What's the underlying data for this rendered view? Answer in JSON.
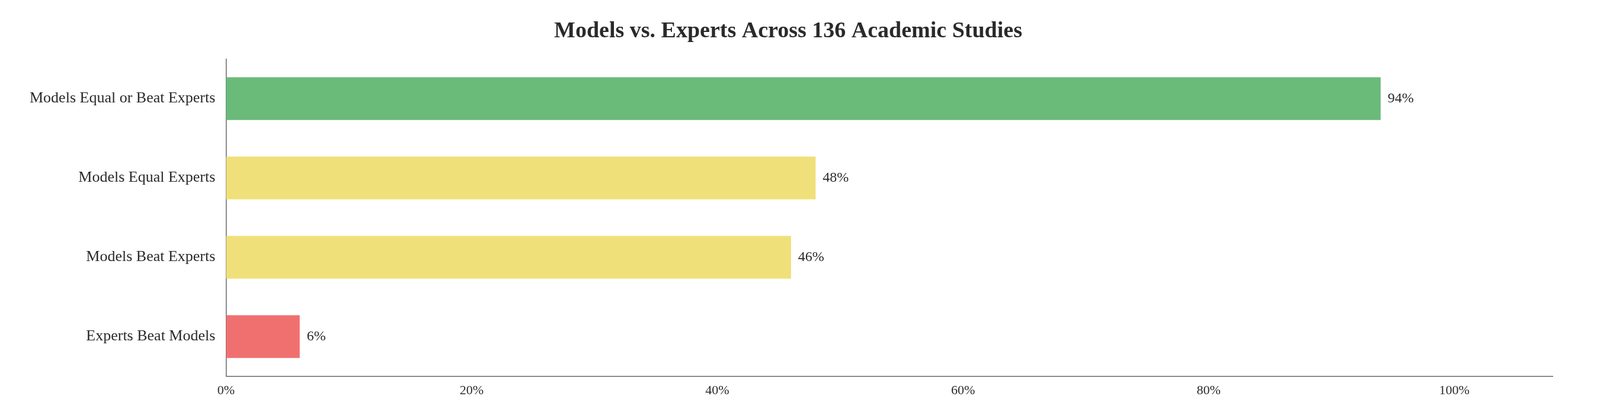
{
  "chart_data": {
    "type": "bar",
    "orientation": "horizontal",
    "title": "Models vs. Experts Across 136 Academic Studies",
    "categories": [
      "Models Equal or Beat Experts",
      "Models Equal Experts",
      "Models Beat Experts",
      "Experts Beat Models"
    ],
    "values": [
      94,
      48,
      46,
      6
    ],
    "value_labels": [
      "94%",
      "48%",
      "46%",
      "6%"
    ],
    "colors": [
      "#6aba7a",
      "#f0e07a",
      "#f0e07a",
      "#f07070"
    ],
    "xlim": [
      0,
      108
    ],
    "xticks": [
      {
        "value": 0,
        "label": "0%"
      },
      {
        "value": 20,
        "label": "20%"
      },
      {
        "value": 40,
        "label": "40%"
      },
      {
        "value": 60,
        "label": "60%"
      },
      {
        "value": 80,
        "label": "80%"
      },
      {
        "value": 100,
        "label": "100%"
      }
    ],
    "grid": false,
    "data_labels": true
  }
}
